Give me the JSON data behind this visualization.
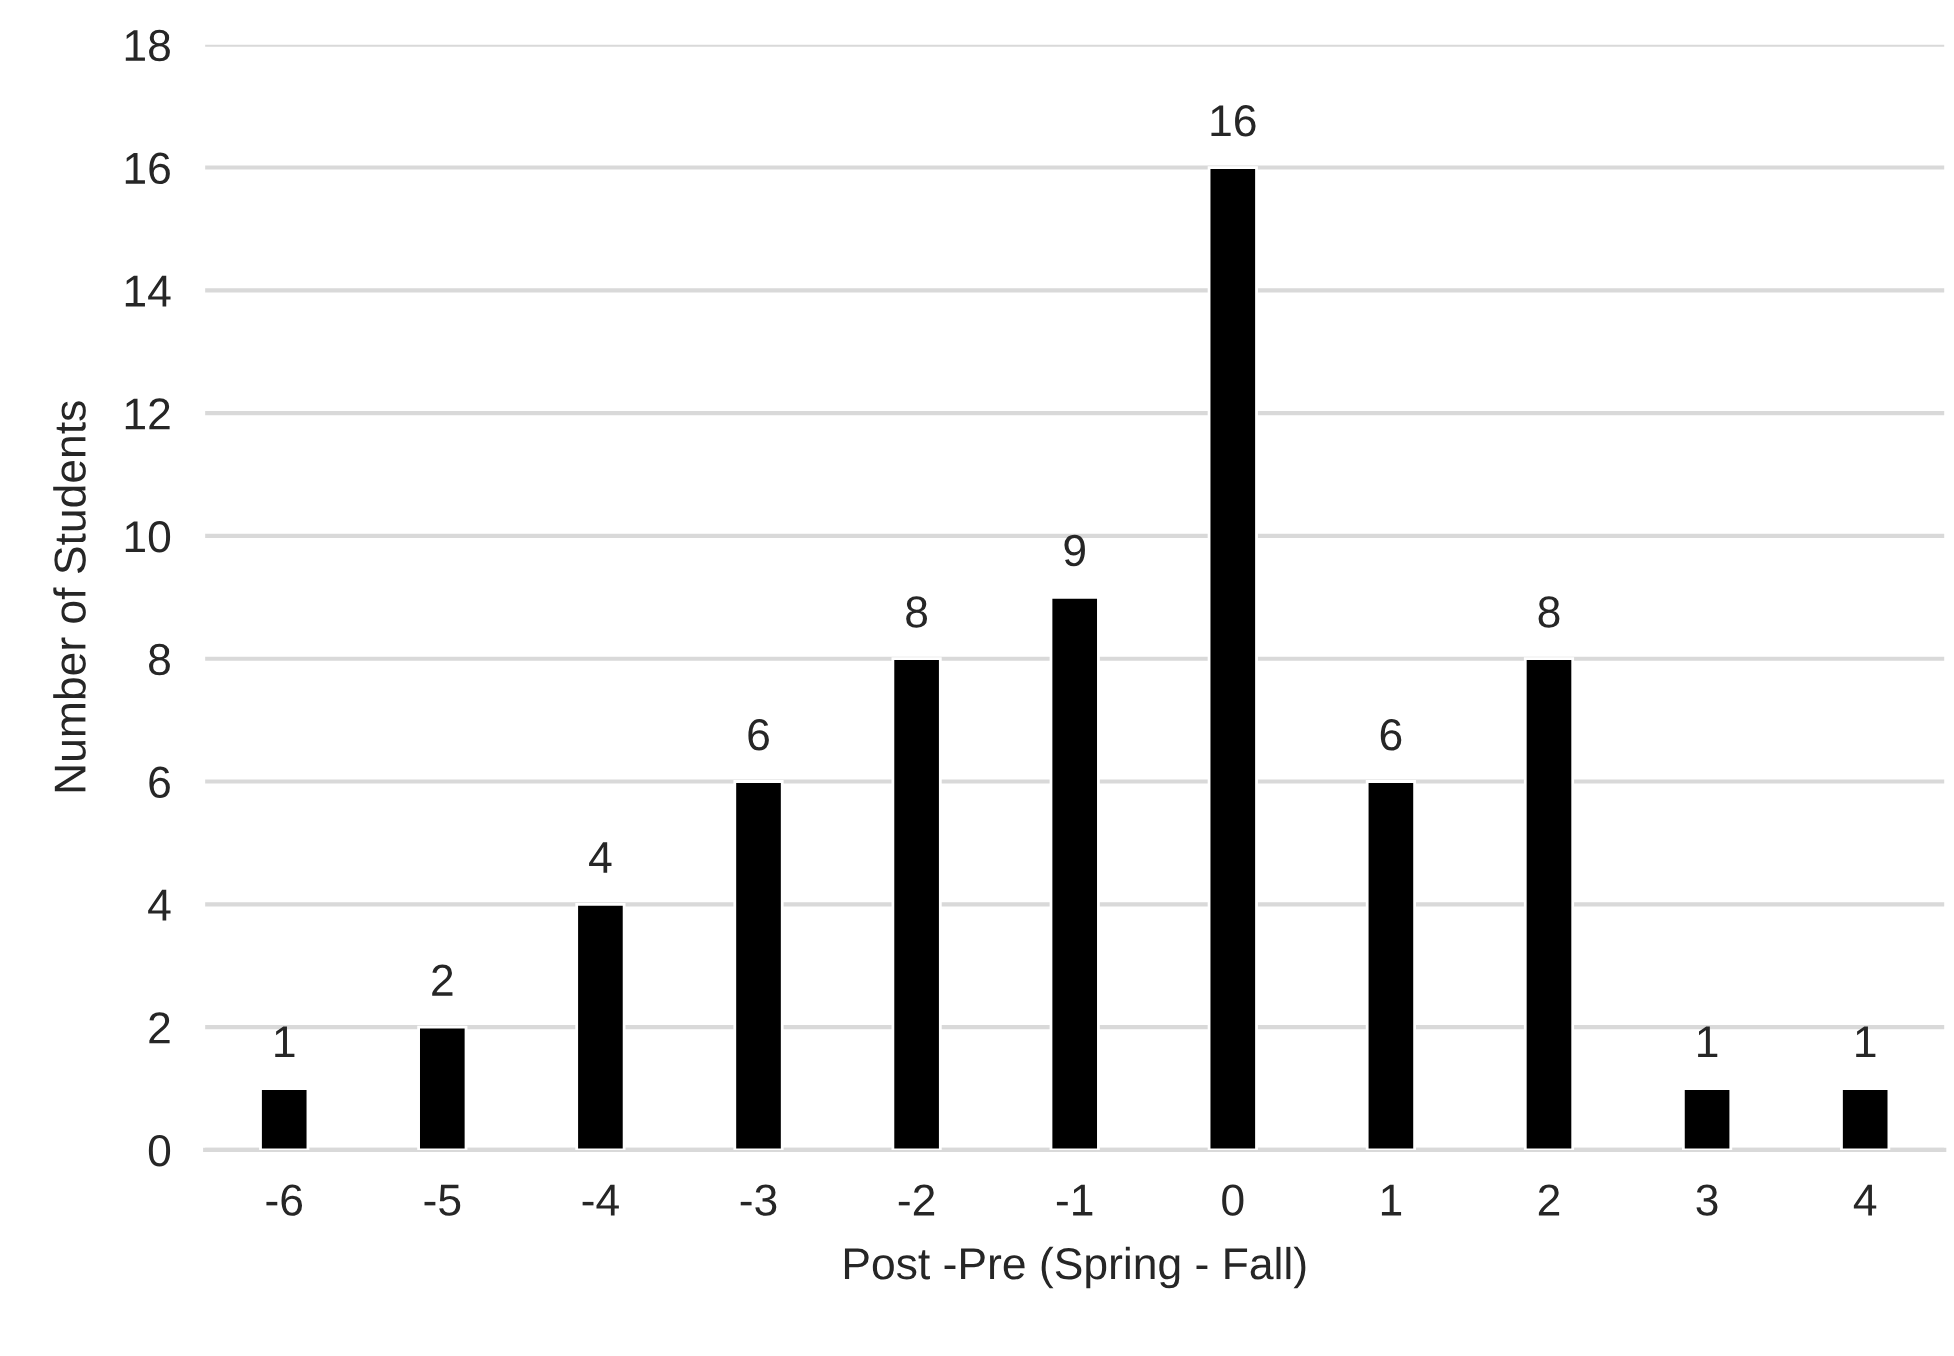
{
  "chart_data": {
    "type": "bar",
    "xlabel": "Post -Pre (Spring - Fall)",
    "ylabel": "Number of Students",
    "categories": [
      "-6",
      "-5",
      "-4",
      "-3",
      "-2",
      "-1",
      "0",
      "1",
      "2",
      "3",
      "4"
    ],
    "values": [
      1,
      2,
      4,
      6,
      8,
      9,
      16,
      6,
      8,
      1,
      1
    ],
    "color": "#000000",
    "ylim": [
      0,
      18
    ],
    "yticks": [
      0,
      2,
      4,
      6,
      8,
      10,
      12,
      14,
      16,
      18
    ],
    "grid": "y",
    "data_labels": true
  }
}
